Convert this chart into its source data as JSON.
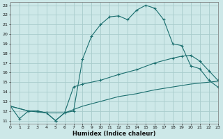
{
  "bg_color": "#cde8e8",
  "grid_color": "#a8cccc",
  "line_color": "#1a6e6e",
  "xlabel": "Humidex (Indice chaleur)",
  "ylim_min": 11,
  "ylim_max": 23,
  "xlim_min": 0,
  "xlim_max": 23,
  "yticks": [
    11,
    12,
    13,
    14,
    15,
    16,
    17,
    18,
    19,
    20,
    21,
    22,
    23
  ],
  "xticks": [
    0,
    1,
    2,
    3,
    4,
    5,
    6,
    7,
    8,
    9,
    10,
    11,
    12,
    13,
    14,
    15,
    16,
    17,
    18,
    19,
    20,
    21,
    22,
    23
  ],
  "line1_x": [
    0,
    1,
    2,
    3,
    4,
    5,
    6,
    7,
    8,
    9,
    10,
    11,
    12,
    13,
    14,
    15,
    16,
    17,
    18,
    19,
    20,
    21,
    22,
    23
  ],
  "line1_y": [
    12.5,
    11.2,
    12.0,
    12.0,
    11.8,
    11.0,
    11.8,
    12.0,
    17.4,
    19.8,
    21.0,
    21.8,
    21.9,
    21.5,
    22.5,
    23.0,
    22.7,
    21.5,
    19.0,
    18.8,
    16.7,
    16.4,
    15.2,
    14.5
  ],
  "line2_x": [
    0,
    2,
    3,
    4,
    5,
    6,
    7,
    8,
    10,
    12,
    14,
    16,
    18,
    19,
    20,
    21,
    22,
    23
  ],
  "line2_y": [
    12.5,
    12.0,
    12.0,
    11.8,
    11.0,
    11.8,
    14.5,
    14.8,
    15.2,
    15.8,
    16.3,
    17.0,
    17.5,
    17.7,
    17.8,
    17.2,
    16.2,
    15.2
  ],
  "line3_x": [
    0,
    2,
    4,
    6,
    8,
    10,
    12,
    14,
    16,
    18,
    20,
    22,
    23
  ],
  "line3_y": [
    12.5,
    12.0,
    11.8,
    11.8,
    12.5,
    13.0,
    13.5,
    13.8,
    14.2,
    14.5,
    14.8,
    15.0,
    15.1
  ]
}
